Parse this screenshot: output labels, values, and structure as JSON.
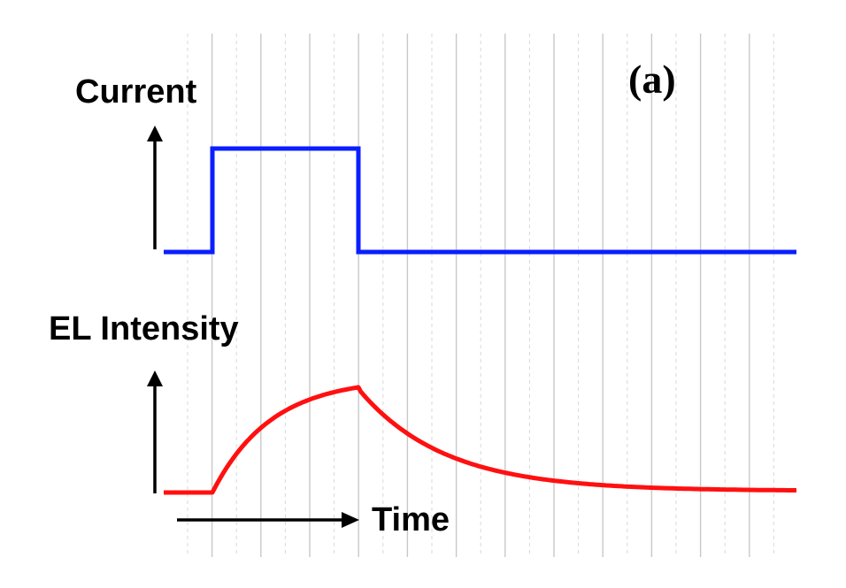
{
  "panel_label": "(a)",
  "labels": {
    "current": "Current",
    "el_intensity": "EL Intensity",
    "time": "Time"
  },
  "colors": {
    "current_trace": "#0a1eff",
    "el_trace": "#ff1010",
    "grid_solid": "#c8c8c8",
    "grid_dashed": "#d8d8d8",
    "axis": "#000000"
  },
  "chart_data": {
    "type": "line",
    "grid": true,
    "series": [
      {
        "signal": "current",
        "shape": "rectangular pulse",
        "x": [
          0,
          1,
          1,
          4,
          4,
          13
        ],
        "y": [
          0,
          0,
          1,
          1,
          0,
          0
        ]
      },
      {
        "signal": "el_intensity",
        "shape": "exponential rise during pulse, exponential decay after",
        "x": [
          0,
          1,
          1.5,
          2,
          2.5,
          3,
          3.5,
          4,
          5,
          6,
          7,
          8,
          9,
          10,
          11,
          12,
          13
        ],
        "y": [
          0,
          0,
          0.35,
          0.58,
          0.74,
          0.85,
          0.93,
          1.0,
          0.56,
          0.32,
          0.18,
          0.11,
          0.07,
          0.04,
          0.03,
          0.02,
          0.015
        ]
      }
    ]
  }
}
